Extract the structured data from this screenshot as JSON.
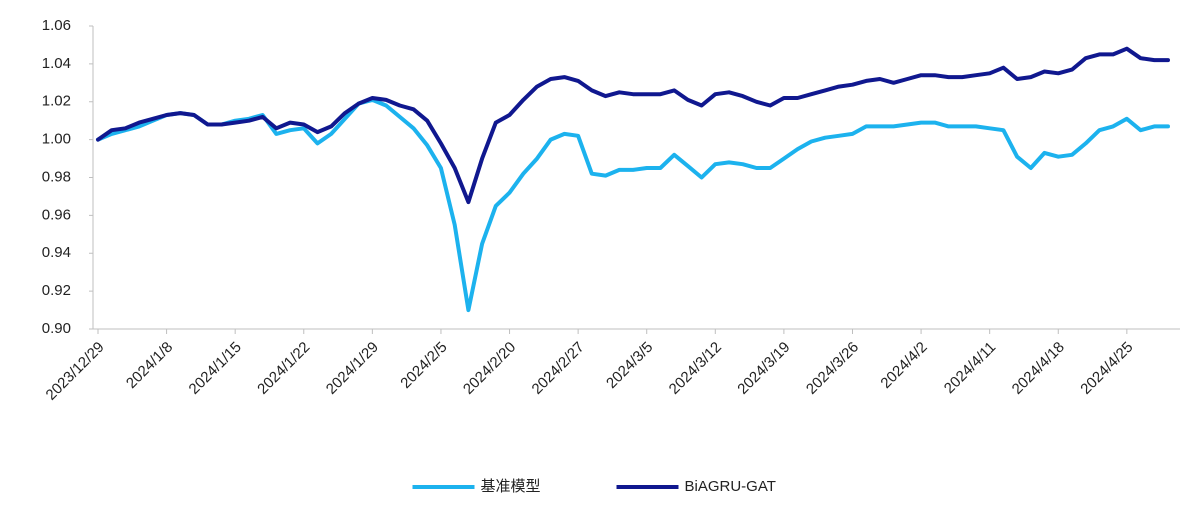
{
  "chart_data": {
    "type": "line",
    "categories": [
      "2023/12/29",
      null,
      null,
      null,
      null,
      "2024/1/8",
      null,
      null,
      null,
      null,
      "2024/1/15",
      null,
      null,
      null,
      null,
      "2024/1/22",
      null,
      null,
      null,
      null,
      "2024/1/29",
      null,
      null,
      null,
      null,
      "2024/2/5",
      null,
      null,
      null,
      null,
      "2024/2/20",
      null,
      null,
      null,
      null,
      "2024/2/27",
      null,
      null,
      null,
      null,
      "2024/3/5",
      null,
      null,
      null,
      null,
      "2024/3/12",
      null,
      null,
      null,
      null,
      "2024/3/19",
      null,
      null,
      null,
      null,
      "2024/3/26",
      null,
      null,
      null,
      null,
      "2024/4/2",
      null,
      null,
      null,
      null,
      "2024/4/11",
      null,
      null,
      null,
      null,
      "2024/4/18",
      null,
      null,
      null,
      null,
      "2024/4/25",
      null,
      null,
      null
    ],
    "series": [
      {
        "name": "基准模型",
        "color": "#1cb2ee",
        "values": [
          1.0,
          1.003,
          1.005,
          1.007,
          1.01,
          1.013,
          1.014,
          1.013,
          1.008,
          1.008,
          1.01,
          1.011,
          1.013,
          1.003,
          1.005,
          1.006,
          0.998,
          1.003,
          1.011,
          1.019,
          1.021,
          1.018,
          1.012,
          1.006,
          0.997,
          0.985,
          0.955,
          0.91,
          0.945,
          0.965,
          0.972,
          0.982,
          0.99,
          1.0,
          1.003,
          1.002,
          0.982,
          0.981,
          0.984,
          0.984,
          0.985,
          0.985,
          0.992,
          0.986,
          0.98,
          0.987,
          0.988,
          0.987,
          0.985,
          0.985,
          0.99,
          0.995,
          0.999,
          1.001,
          1.002,
          1.003,
          1.007,
          1.007,
          1.007,
          1.008,
          1.009,
          1.009,
          1.007,
          1.007,
          1.007,
          1.006,
          1.005,
          0.991,
          0.985,
          0.993,
          0.991,
          0.992,
          0.998,
          1.005,
          1.007,
          1.011,
          1.005,
          1.007,
          1.007
        ]
      },
      {
        "name": "BiAGRU-GAT",
        "color": "#10188f",
        "values": [
          1.0,
          1.005,
          1.006,
          1.009,
          1.011,
          1.013,
          1.014,
          1.013,
          1.008,
          1.008,
          1.009,
          1.01,
          1.012,
          1.006,
          1.009,
          1.008,
          1.004,
          1.007,
          1.014,
          1.019,
          1.022,
          1.021,
          1.018,
          1.016,
          1.01,
          0.998,
          0.985,
          0.967,
          0.99,
          1.009,
          1.013,
          1.021,
          1.028,
          1.032,
          1.033,
          1.031,
          1.026,
          1.023,
          1.025,
          1.024,
          1.024,
          1.024,
          1.026,
          1.021,
          1.018,
          1.024,
          1.025,
          1.023,
          1.02,
          1.018,
          1.022,
          1.022,
          1.024,
          1.026,
          1.028,
          1.029,
          1.031,
          1.032,
          1.03,
          1.032,
          1.034,
          1.034,
          1.033,
          1.033,
          1.034,
          1.035,
          1.038,
          1.032,
          1.033,
          1.036,
          1.035,
          1.037,
          1.043,
          1.045,
          1.045,
          1.048,
          1.043,
          1.042,
          1.042
        ]
      }
    ],
    "ylim": [
      0.9,
      1.06
    ],
    "yticks": [
      {
        "value": 0.9,
        "label": "0.90"
      },
      0.92,
      0.94,
      0.96,
      0.98,
      {
        "value": 1.0,
        "label": "1.00"
      },
      1.02,
      1.04,
      1.06
    ],
    "grid": false,
    "legend": "bottom"
  }
}
